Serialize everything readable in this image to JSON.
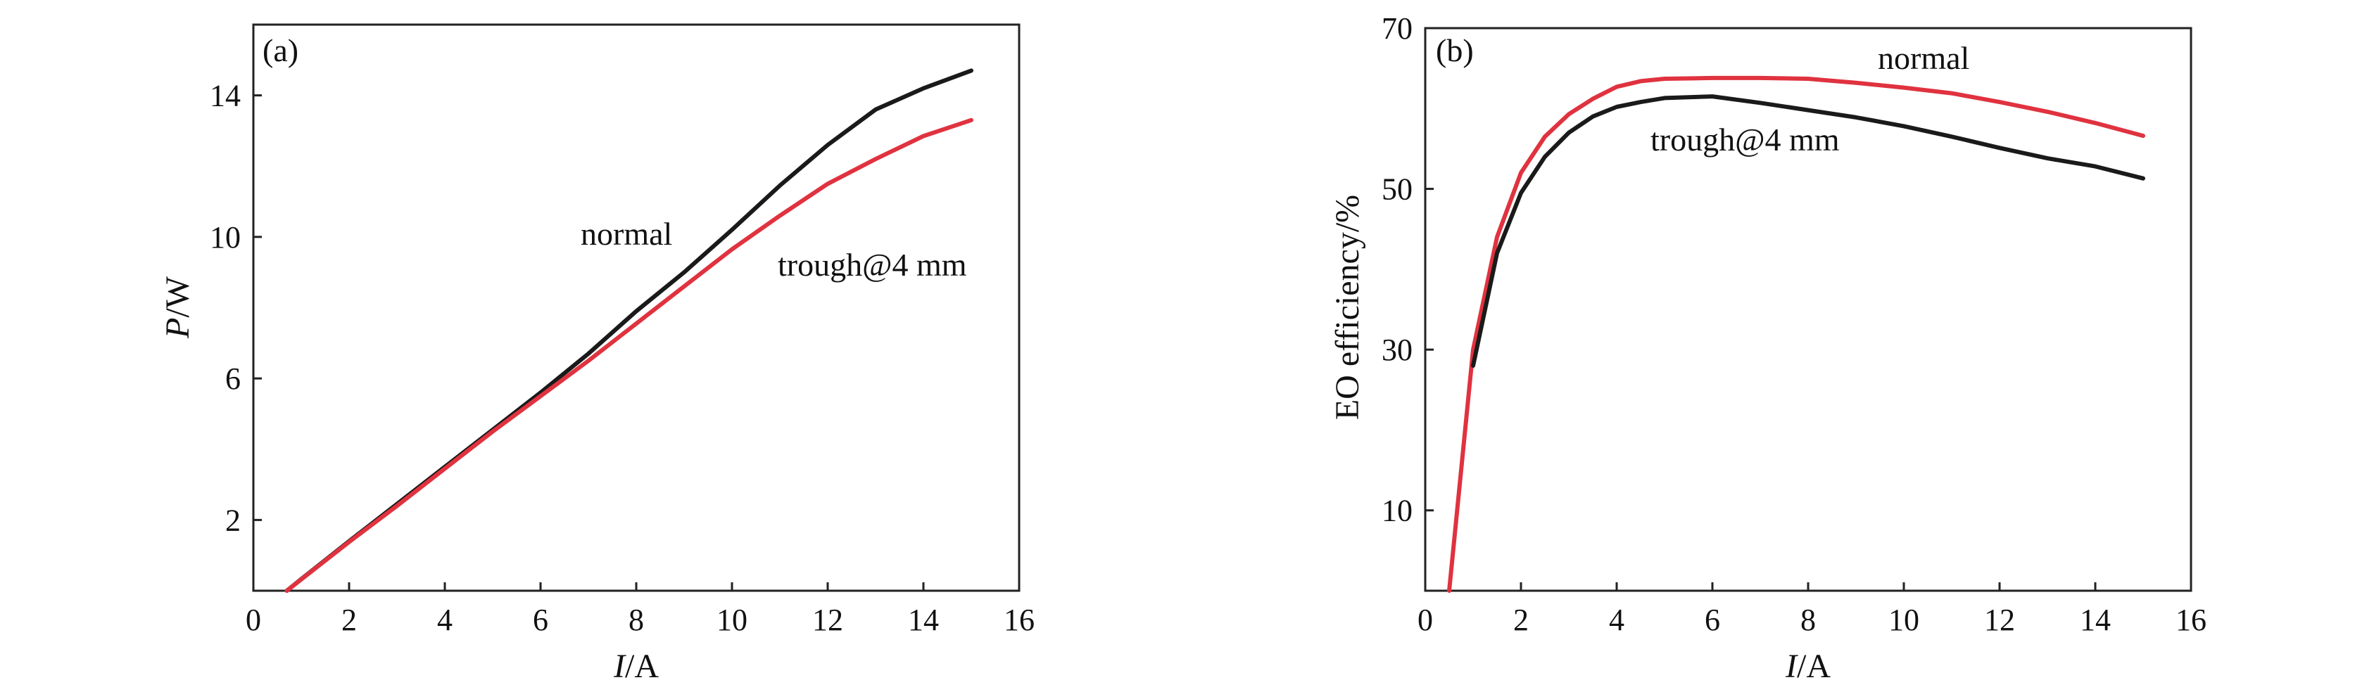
{
  "colors": {
    "normal": "#1a1a1a",
    "trough": "#e0323f",
    "axis": "#222222"
  },
  "chart_data": [
    {
      "type": "line",
      "panel_label": "(a)",
      "xlabel_var": "I",
      "xlabel_unit": "/A",
      "ylabel_var": "P",
      "ylabel_unit": "/W",
      "xlim": [
        0,
        16
      ],
      "ylim": [
        0,
        16
      ],
      "xticks": [
        0,
        2,
        4,
        6,
        8,
        10,
        12,
        14,
        16
      ],
      "xtick_labels": [
        "0",
        "2",
        "4",
        "6",
        "8",
        "10",
        "12",
        "14",
        "16"
      ],
      "yticks": [
        2,
        6,
        10,
        14
      ],
      "ytick_labels": [
        "2",
        "6",
        "10",
        "14"
      ],
      "grid": false,
      "annotations": [
        "normal",
        "trough@4 mm"
      ],
      "series": [
        {
          "name": "normal",
          "color": "#1a1a1a",
          "x": [
            0.7,
            1,
            2,
            3,
            4,
            5,
            6,
            7,
            8,
            9,
            10,
            11,
            12,
            13,
            14,
            15
          ],
          "y": [
            0,
            0.33,
            1.4,
            2.45,
            3.5,
            4.55,
            5.6,
            6.7,
            7.9,
            9.0,
            10.2,
            11.45,
            12.6,
            13.6,
            14.2,
            14.7
          ]
        },
        {
          "name": "trough@4 mm",
          "color": "#e0323f",
          "x": [
            0.7,
            1,
            2,
            3,
            4,
            5,
            6,
            7,
            8,
            9,
            10,
            11,
            12,
            13,
            14,
            15
          ],
          "y": [
            0,
            0.32,
            1.38,
            2.4,
            3.45,
            4.5,
            5.5,
            6.5,
            7.55,
            8.6,
            9.65,
            10.6,
            11.5,
            12.2,
            12.85,
            13.3
          ]
        }
      ]
    },
    {
      "type": "line",
      "panel_label": "(b)",
      "xlabel_var": "I",
      "xlabel_unit": "/A",
      "ylabel": "EO efficiency/%",
      "xlim": [
        0,
        16
      ],
      "ylim": [
        0,
        70
      ],
      "xticks": [
        0,
        2,
        4,
        6,
        8,
        10,
        12,
        14,
        16
      ],
      "xtick_labels": [
        "0",
        "2",
        "4",
        "6",
        "8",
        "10",
        "12",
        "14",
        "16"
      ],
      "yticks": [
        10,
        30,
        50,
        70
      ],
      "ytick_labels": [
        "10",
        "30",
        "50",
        "70"
      ],
      "grid": false,
      "annotations": [
        "normal",
        "trough@4 mm"
      ],
      "series": [
        {
          "name": "normal",
          "color": "#e0323f",
          "x": [
            0.5,
            1,
            1.5,
            2,
            2.5,
            3,
            3.5,
            4,
            4.5,
            5,
            6,
            7,
            8,
            9,
            10,
            11,
            12,
            13,
            14,
            15
          ],
          "y": [
            0,
            30,
            44,
            52,
            56.5,
            59.3,
            61.2,
            62.7,
            63.4,
            63.7,
            63.8,
            63.8,
            63.7,
            63.2,
            62.6,
            61.9,
            60.8,
            59.6,
            58.2,
            56.6
          ]
        },
        {
          "name": "trough@4 mm",
          "color": "#1a1a1a",
          "x": [
            1,
            1.5,
            2,
            2.5,
            3,
            3.5,
            4,
            4.5,
            5,
            6,
            7,
            8,
            9,
            10,
            11,
            12,
            13,
            14,
            15
          ],
          "y": [
            28,
            42,
            49.5,
            54,
            57,
            59,
            60.2,
            60.8,
            61.3,
            61.5,
            60.7,
            59.8,
            58.9,
            57.8,
            56.5,
            55.1,
            53.8,
            52.8,
            51.3
          ]
        }
      ]
    }
  ]
}
